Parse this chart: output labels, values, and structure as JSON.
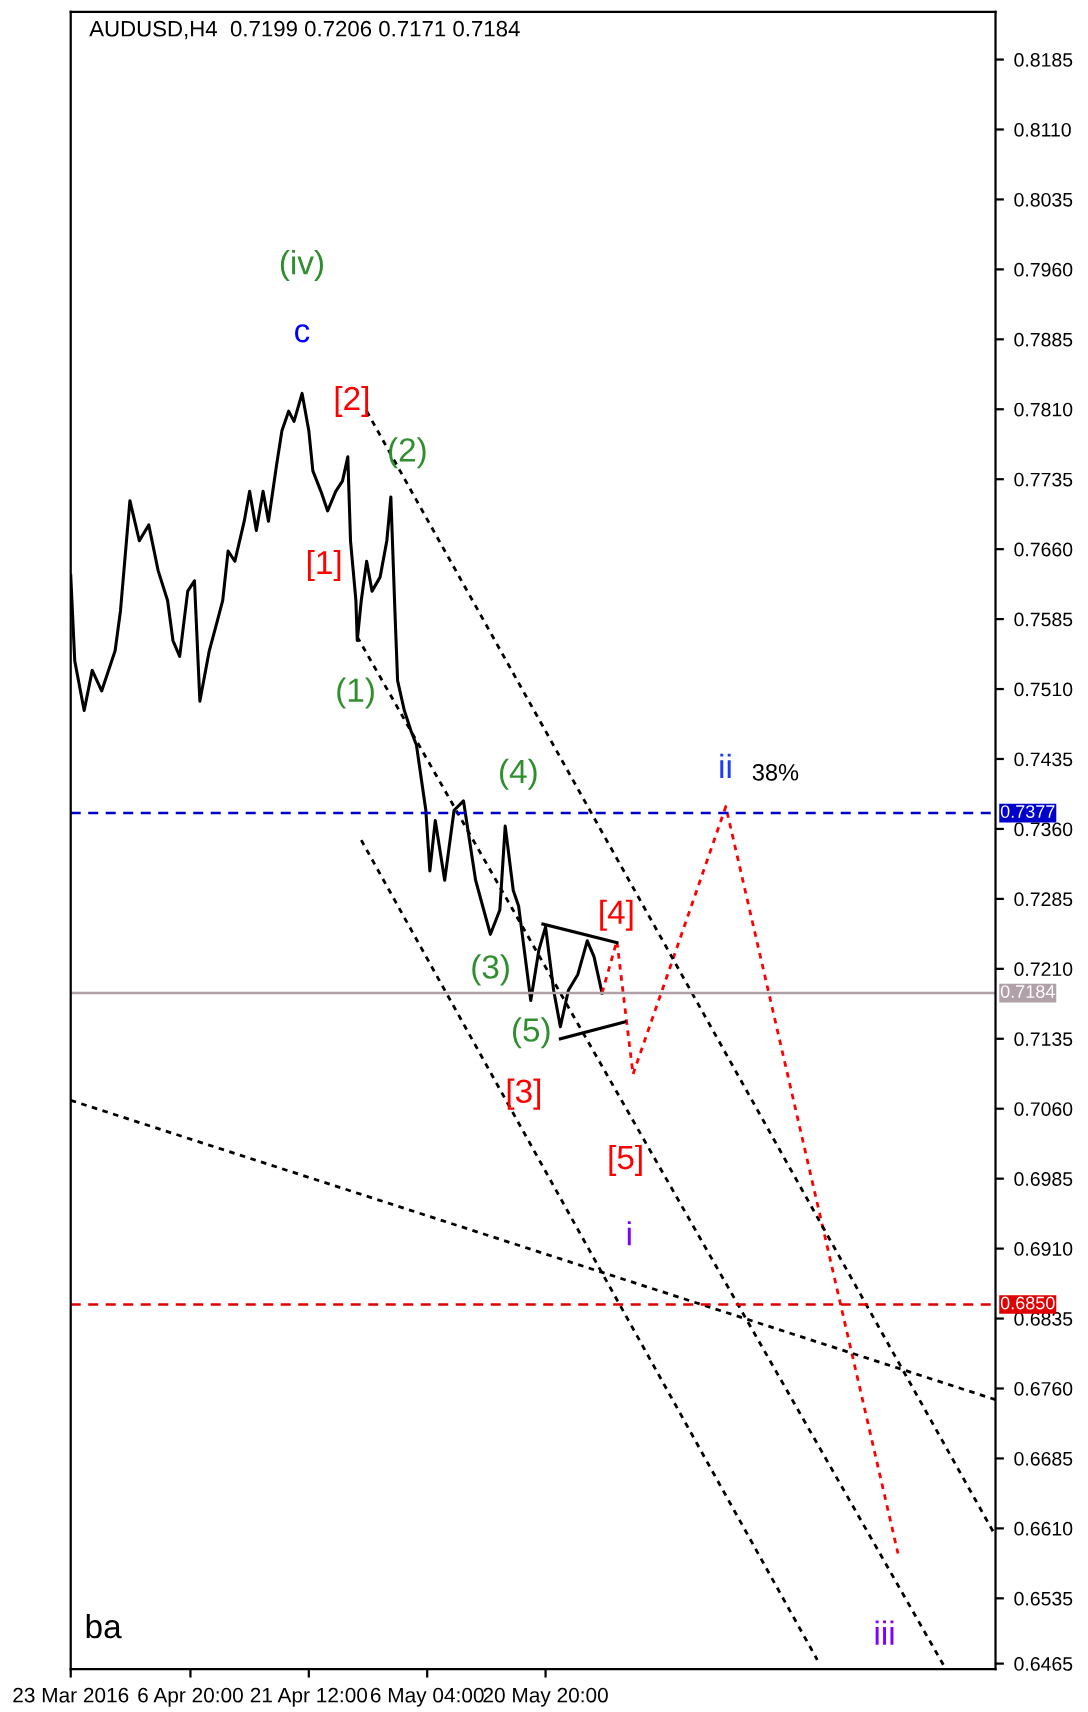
{
  "chart_data": {
    "type": "line",
    "title": "AUDUSD,H4  0.7199 0.7206 0.7171 0.7184",
    "xlim": [
      "2016-03-23T00:00",
      "2016-07-15T14:00"
    ],
    "ylim": [
      0.6459,
      0.8236
    ],
    "xticks": [
      {
        "value": "2016-03-23T00:00",
        "label": "23 Mar 2016"
      },
      {
        "value": "2016-04-06T20:00",
        "label": "6 Apr 20:00"
      },
      {
        "value": "2016-04-21T12:00",
        "label": "21 Apr 12:00"
      },
      {
        "value": "2016-05-06T04:00",
        "label": "6 May 04:00"
      },
      {
        "value": "2016-05-20T20:00",
        "label": "20 May 20:00"
      }
    ],
    "yticks": [
      0.8185,
      {
        "value": 0.811,
        "label": "0.8110"
      },
      0.8035,
      {
        "value": 0.796,
        "label": "0.7960"
      },
      0.7885,
      {
        "value": 0.781,
        "label": "0.7810"
      },
      0.7735,
      {
        "value": 0.766,
        "label": "0.7660"
      },
      0.7585,
      {
        "value": 0.751,
        "label": "0.7510"
      },
      0.7435,
      {
        "value": 0.736,
        "label": "0.7360"
      },
      0.7285,
      {
        "value": 0.721,
        "label": "0.7210"
      },
      0.7135,
      {
        "value": 0.706,
        "label": "0.7060"
      },
      0.6985,
      {
        "value": 0.691,
        "label": "0.6910"
      },
      0.6835,
      {
        "value": 0.676,
        "label": "0.6760"
      },
      0.6685,
      {
        "value": 0.661,
        "label": "0.6610"
      },
      0.6535,
      0.6465
    ],
    "series": [
      {
        "color": "#000000",
        "line_style": "solid",
        "x": [
          "2016-03-23T00:00",
          "2016-03-23T12:00",
          "2016-03-24T16:00",
          "2016-03-25T16:00",
          "2016-03-26T20:00",
          "2016-03-28T12:00",
          "2016-03-29T04:00",
          "2016-03-30T08:00",
          "2016-03-31T12:00",
          "2016-04-01T16:00",
          "2016-04-02T20:00",
          "2016-04-04T00:00",
          "2016-04-04T16:00",
          "2016-04-05T12:00",
          "2016-04-06T12:00",
          "2016-04-07T08:00",
          "2016-04-08T00:00",
          "2016-04-09T04:00",
          "2016-04-10T04:00",
          "2016-04-10T20:00",
          "2016-04-11T12:00",
          "2016-04-12T08:00",
          "2016-04-13T12:00",
          "2016-04-14T04:00",
          "2016-04-15T00:00",
          "2016-04-15T20:00",
          "2016-04-16T12:00",
          "2016-04-17T12:00",
          "2016-04-18T04:00",
          "2016-04-19T00:00",
          "2016-04-19T16:00",
          "2016-04-20T16:00",
          "2016-04-21T12:00",
          "2016-04-22T00:00",
          "2016-04-23T00:00",
          "2016-04-23T20:00",
          "2016-04-24T20:00",
          "2016-04-25T16:00",
          "2016-04-26T08:00",
          "2016-04-26T16:00",
          "2016-04-27T08:00",
          "2016-04-27T12:00",
          "2016-04-28T00:00",
          "2016-04-28T16:00",
          "2016-04-29T08:00",
          "2016-04-30T08:00",
          "2016-05-01T04:00",
          "2016-05-01T16:00",
          "2016-05-02T04:00",
          "2016-05-02T12:00",
          "2016-05-03T08:00",
          "2016-05-04T04:00",
          "2016-05-04T20:00",
          "2016-05-06T00:00",
          "2016-05-06T12:00",
          "2016-05-07T04:00",
          "2016-05-08T08:00",
          "2016-05-09T12:00",
          "2016-05-10T16:00",
          "2016-05-12T04:00",
          "2016-05-14T00:00",
          "2016-05-15T04:00",
          "2016-05-15T20:00",
          "2016-05-16T20:00",
          "2016-05-17T12:00",
          "2016-05-19T00:00",
          "2016-05-20T00:00",
          "2016-05-20T20:00",
          "2016-05-21T20:00",
          "2016-05-22T16:00",
          "2016-05-23T16:00",
          "2016-05-24T20:00",
          "2016-05-26T00:00",
          "2016-05-26T20:00",
          "2016-05-27T20:00"
        ],
        "values": [
          0.7632,
          0.754,
          0.7487,
          0.753,
          0.7508,
          0.7551,
          0.7594,
          0.7712,
          0.7669,
          0.7686,
          0.7637,
          0.7605,
          0.7562,
          0.7545,
          0.7615,
          0.7626,
          0.7497,
          0.7551,
          0.7583,
          0.7605,
          0.7658,
          0.7647,
          0.769,
          0.7722,
          0.768,
          0.7722,
          0.769,
          0.775,
          0.7787,
          0.7808,
          0.7797,
          0.7827,
          0.7787,
          0.7744,
          0.7722,
          0.7701,
          0.7722,
          0.7733,
          0.7759,
          0.7669,
          0.7605,
          0.7562,
          0.7605,
          0.7647,
          0.7615,
          0.763,
          0.7669,
          0.7716,
          0.7594,
          0.7519,
          0.7487,
          0.7465,
          0.745,
          0.738,
          0.7315,
          0.7369,
          0.7305,
          0.738,
          0.739,
          0.7305,
          0.7247,
          0.7273,
          0.7363,
          0.7294,
          0.7277,
          0.7176,
          0.723,
          0.7255,
          0.7187,
          0.7148,
          0.7187,
          0.7204,
          0.724,
          0.7223,
          0.7184
        ]
      },
      {
        "color": "#ff0000",
        "line_style": "dotted",
        "x": [
          "2016-05-27T20:00",
          "2016-05-29T16:00",
          "2016-05-31T16:00",
          "2016-06-12T04:00",
          "2016-07-03T12:00"
        ],
        "values": [
          0.7184,
          0.724,
          0.7097,
          0.7384,
          0.6583
        ]
      },
      {
        "color": "#000000",
        "line_style": "dotted",
        "x": [
          "2016-04-28T16:00",
          "2016-07-15T14:00"
        ],
        "values": [
          0.7808,
          0.6602
        ]
      },
      {
        "color": "#000000",
        "line_style": "dotted",
        "x": [
          "2016-04-27T12:00",
          "2016-07-09T04:00"
        ],
        "values": [
          0.7566,
          0.6463
        ]
      },
      {
        "color": "#000000",
        "line_style": "dotted",
        "x": [
          "2016-04-28T00:00",
          "2016-06-23T12:00"
        ],
        "values": [
          0.7348,
          0.6469
        ]
      },
      {
        "color": "#000000",
        "line_style": "dotted",
        "x": [
          "2016-03-23T00:00",
          "2016-07-15T14:00"
        ],
        "values": [
          0.7069,
          0.6748
        ]
      },
      {
        "color": "#000000",
        "line_style": "solid",
        "x": [
          "2016-05-20T12:00",
          "2016-05-29T16:00"
        ],
        "values": [
          0.7258,
          0.7238
        ]
      },
      {
        "color": "#000000",
        "line_style": "solid",
        "x": [
          "2016-05-22T16:00",
          "2016-05-30T16:00"
        ],
        "values": [
          0.7135,
          0.7153
        ]
      }
    ],
    "ref_lines": [
      {
        "axis": "y",
        "value": 0.7377,
        "label": "0.7377",
        "color": "#0000cc",
        "line_style": "dashed"
      },
      {
        "axis": "y",
        "value": 0.7184,
        "label": "0.7184",
        "color": "#b0a0a8",
        "line_style": "solid"
      },
      {
        "axis": "y",
        "value": 0.685,
        "label": "0.6850",
        "color": "#e00000",
        "line_style": "dashed"
      }
    ],
    "annotations": [
      "(iv)",
      "c",
      "[2]",
      "(2)",
      "[1]",
      "(1)",
      "(4)",
      "ii",
      "38%",
      "[4]",
      "(3)",
      "(5)",
      "[3]",
      "[5]",
      "i",
      "iii",
      "ba"
    ]
  }
}
